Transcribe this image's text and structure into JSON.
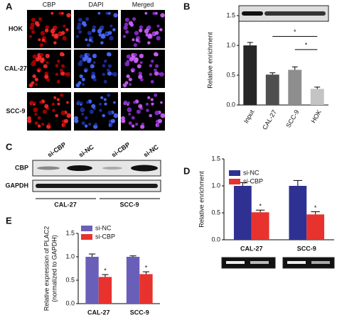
{
  "panels": {
    "a": "A",
    "b": "B",
    "c": "C",
    "d": "D",
    "e": "E"
  },
  "microscopy": {
    "columns": [
      "CBP",
      "DAPI",
      "Merged"
    ],
    "rows": [
      "HOK",
      "CAL-27",
      "SCC-9"
    ]
  },
  "western_blot": {
    "lanes": [
      "si-CBP",
      "si-NC",
      "si-CBP",
      "si-NC"
    ],
    "proteins": [
      "CBP",
      "GAPDH"
    ],
    "groups": [
      "CAL-27",
      "SCC-9"
    ]
  },
  "chart_data": [
    {
      "type": "bar",
      "y_label": "Relative enrichment",
      "categories": [
        "Input",
        "CAL-27",
        "SCC-9",
        "HOK"
      ],
      "values": [
        1.0,
        0.51,
        0.59,
        0.27
      ],
      "errors": [
        0.05,
        0.03,
        0.05,
        0.03
      ],
      "colors": [
        "#262626",
        "#4f4f4f",
        "#8e8e8e",
        "#c4c4c4"
      ],
      "ylim": [
        0,
        1.5
      ],
      "yticks": [
        {
          "value": 0,
          "label": "0.0"
        },
        {
          "value": 0.5,
          "label": "0.5"
        },
        {
          "value": 1,
          "label": "1.0"
        },
        {
          "value": 1.5,
          "label": "1.5"
        }
      ],
      "annotations": [
        "*",
        "*"
      ]
    },
    {
      "type": "bar",
      "y_label": "Relative enrichment",
      "categories": [
        "CAL-27",
        "SCC-9"
      ],
      "series": [
        {
          "name": "si-NC",
          "color": "#2e3192",
          "values": [
            1.0,
            1.0
          ],
          "errors": [
            0.06,
            0.1
          ]
        },
        {
          "name": "si-CBP",
          "color": "#e8322e",
          "values": [
            0.51,
            0.47
          ],
          "errors": [
            0.04,
            0.05
          ],
          "significance": [
            "*",
            "*"
          ]
        }
      ],
      "ylim": [
        0,
        1.5
      ],
      "yticks": [
        {
          "value": 0,
          "label": "0.0"
        },
        {
          "value": 0.5,
          "label": "0.5"
        },
        {
          "value": 1,
          "label": "1.0"
        },
        {
          "value": 1.5,
          "label": "1.5"
        }
      ]
    },
    {
      "type": "bar",
      "y_label": [
        "Relative expression of PLAC2",
        "(normalized to GAPDH)"
      ],
      "categories": [
        "CAL-27",
        "SCC-9"
      ],
      "series": [
        {
          "name": "si-NC",
          "color": "#6a5fb8",
          "values": [
            1.0,
            1.0
          ],
          "errors": [
            0.06,
            0.02
          ]
        },
        {
          "name": "si-CBP",
          "color": "#e8322e",
          "values": [
            0.57,
            0.63
          ],
          "errors": [
            0.05,
            0.05
          ],
          "significance": [
            "*",
            "*"
          ]
        }
      ],
      "ylim": [
        0,
        1.5
      ],
      "yticks": [
        {
          "value": 0,
          "label": "0.0"
        },
        {
          "value": 0.5,
          "label": "0.5"
        },
        {
          "value": 1,
          "label": "1.0"
        },
        {
          "value": 1.5,
          "label": "1.5"
        }
      ]
    }
  ]
}
